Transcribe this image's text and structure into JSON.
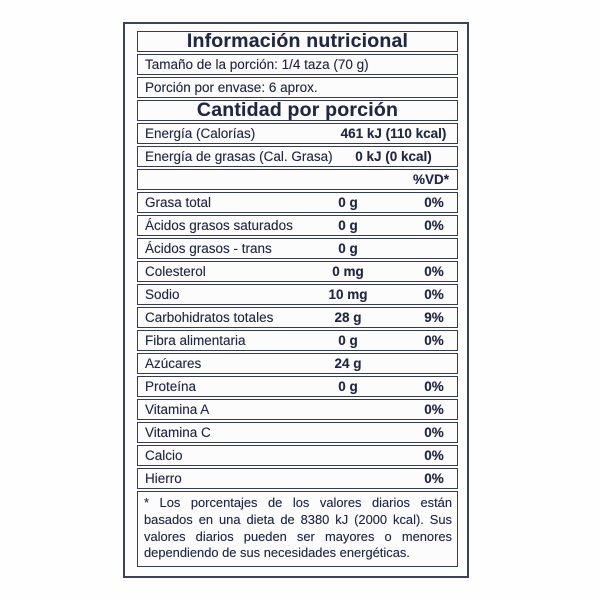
{
  "label": {
    "title": "Información nutricional",
    "serving_size": "Tamaño de la porción: 1/4 taza (70 g)",
    "servings_per_container": "Porción por envase: 6 aprox.",
    "amount_per_serving_header": "Cantidad por porción",
    "energy_rows": [
      {
        "name": "Energía (Calorías)",
        "value": "461 kJ (110 kcal)"
      },
      {
        "name": "Energía de grasas (Cal. Grasa)",
        "value": "0 kJ (0 kcal)"
      }
    ],
    "daily_value_header": "%VD*",
    "nutrients": [
      {
        "name": "Grasa total",
        "amount": "0 g",
        "dv": "0%"
      },
      {
        "name": "Ácidos grasos saturados",
        "amount": "0 g",
        "dv": "0%"
      },
      {
        "name": "Ácidos grasos - trans",
        "amount": "0 g",
        "dv": ""
      },
      {
        "name": "Colesterol",
        "amount": "0 mg",
        "dv": "0%"
      },
      {
        "name": "Sodio",
        "amount": "10 mg",
        "dv": "0%"
      },
      {
        "name": "Carbohidratos totales",
        "amount": "28 g",
        "dv": "9%"
      },
      {
        "name": "Fibra alimentaria",
        "amount": "0 g",
        "dv": "0%"
      },
      {
        "name": "Azúcares",
        "amount": "24 g",
        "dv": ""
      },
      {
        "name": "Proteína",
        "amount": "0 g",
        "dv": "0%"
      },
      {
        "name": "Vitamina A",
        "amount": "",
        "dv": "0%"
      },
      {
        "name": "Vitamina C",
        "amount": "",
        "dv": "0%"
      },
      {
        "name": "Calcio",
        "amount": "",
        "dv": "0%"
      },
      {
        "name": "Hierro",
        "amount": "",
        "dv": "0%"
      }
    ],
    "footnote": "* Los porcentajes de los valores diarios están basados en una dieta de 8380 kJ (2000 kcal). Sus valores diarios pueden ser mayores o menores dependiendo de sus necesidades energéticas.",
    "colors": {
      "text": "#222741",
      "border": "#343b52",
      "background": "#fdfdfe"
    }
  }
}
